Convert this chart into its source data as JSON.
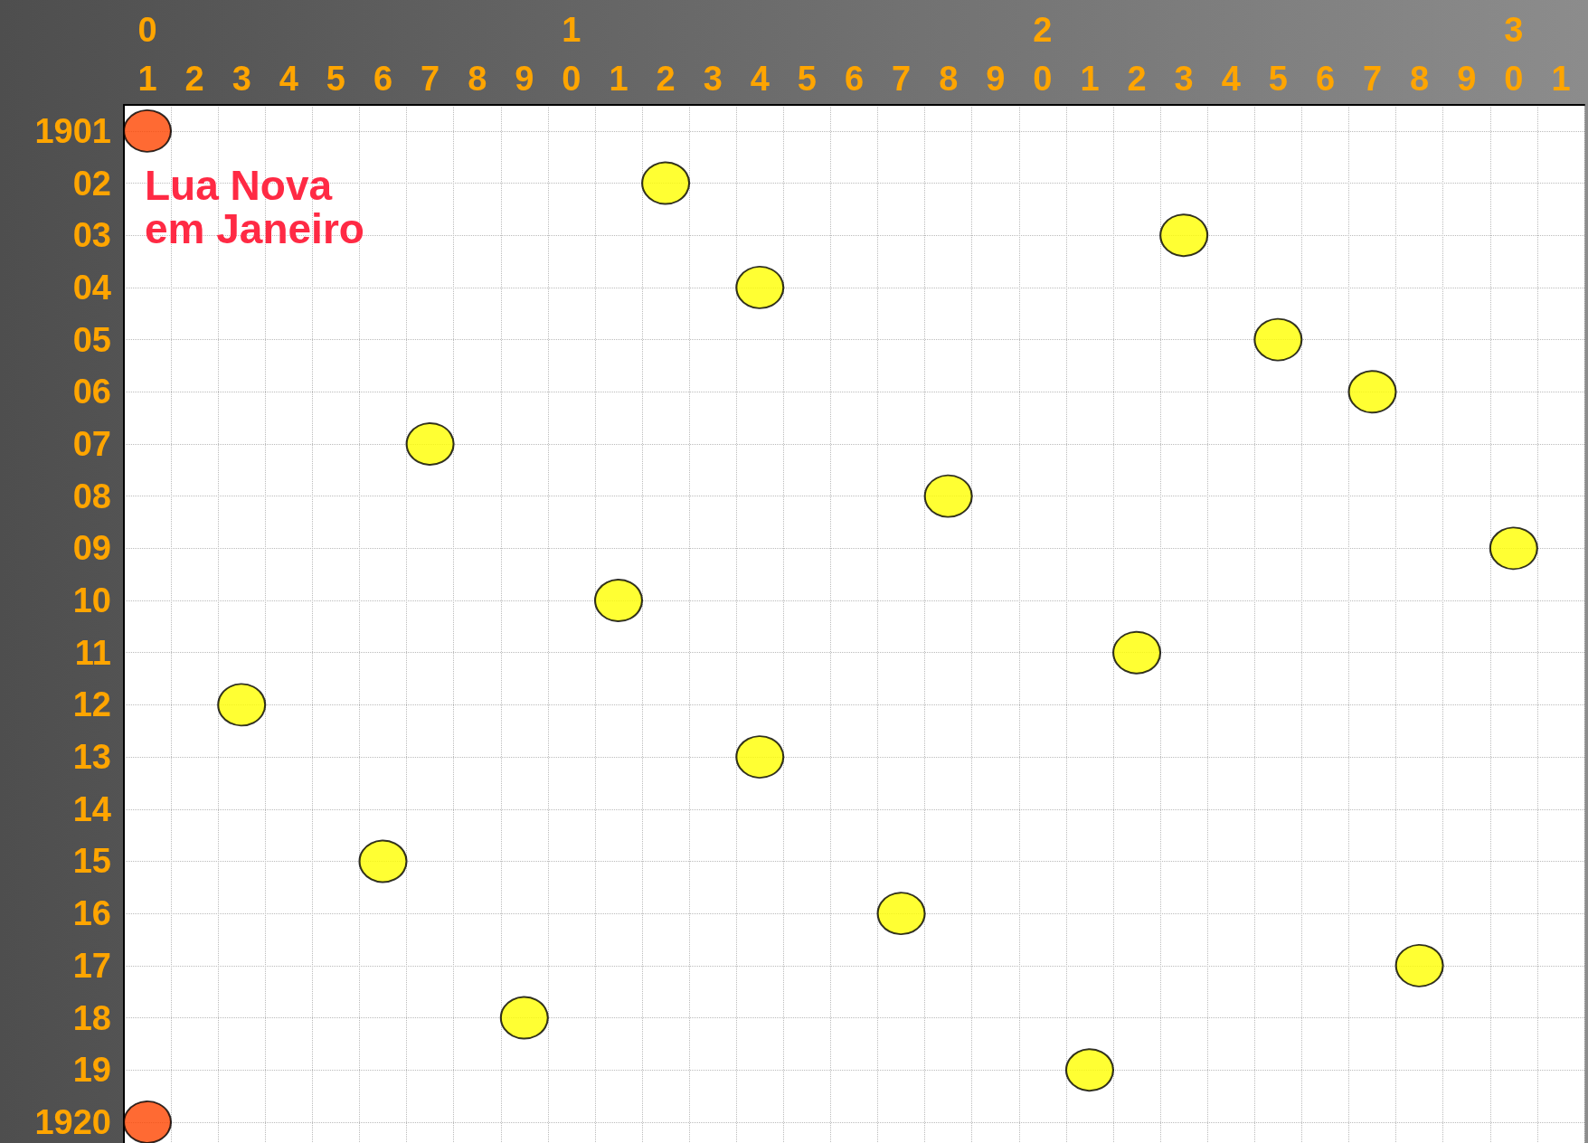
{
  "chart_data": {
    "type": "scatter",
    "categories": [
      "1",
      "2",
      "3",
      "4",
      "5",
      "6",
      "7",
      "8",
      "9",
      "0",
      "1",
      "2",
      "3",
      "4",
      "5",
      "6",
      "7",
      "8",
      "9",
      "0",
      "1",
      "2",
      "3",
      "4",
      "5",
      "6",
      "7",
      "8",
      "9",
      "0",
      "1"
    ],
    "series": [
      {
        "values": [
          1901,
          null,
          1912,
          null,
          null,
          1915,
          1907,
          null,
          1918,
          null,
          1910,
          1902,
          null,
          1904,
          null,
          null,
          1916,
          1908,
          null,
          null,
          1919,
          1911,
          1903,
          null,
          1905,
          null,
          1906,
          1917,
          null,
          1909,
          null
        ],
        "colors": [
          "#ff4500",
          null,
          "#ffff00",
          null,
          null,
          "#ffff00",
          "#ffff00",
          null,
          "#ffff00",
          null,
          "#ffff00",
          "#ffff00",
          null,
          "#ffff00",
          null,
          null,
          "#ffff00",
          "#ffff00",
          null,
          null,
          "#ffff00",
          "#ffff00",
          "#ffff00",
          null,
          "#ffff00",
          null,
          "#ffff00",
          "#ffff00",
          null,
          "#ffff00",
          null
        ]
      },
      {
        "values": [
          1920,
          null,
          null,
          null,
          null,
          null,
          null,
          null,
          null,
          null,
          null,
          null,
          null,
          1913,
          null,
          null,
          null,
          null,
          null,
          null,
          null,
          null,
          null,
          null,
          null,
          null,
          null,
          null,
          null,
          null,
          null
        ],
        "colors": [
          "#ff4500",
          null,
          null,
          null,
          null,
          null,
          null,
          null,
          null,
          null,
          null,
          null,
          null,
          "#ffff00",
          null,
          null,
          null,
          null,
          null,
          null,
          null,
          null,
          null,
          null,
          null,
          null,
          null,
          null,
          null,
          null,
          null
        ]
      }
    ],
    "marker": "circle",
    "grid": true,
    "ylim": [
      1920.4,
      1900.5
    ],
    "yticks": [
      1901,
      {
        "value": 1902,
        "label": "02"
      },
      {
        "value": 1903,
        "label": "03"
      },
      {
        "value": 1904,
        "label": "04"
      },
      {
        "value": 1905,
        "label": "05"
      },
      {
        "value": 1906,
        "label": "06"
      },
      {
        "value": 1907,
        "label": "07"
      },
      {
        "value": 1908,
        "label": "08"
      },
      {
        "value": 1909,
        "label": "09"
      },
      {
        "value": 1910,
        "label": "10"
      },
      {
        "value": 1911,
        "label": "11"
      },
      {
        "value": 1912,
        "label": "12"
      },
      {
        "value": 1913,
        "label": "13"
      },
      {
        "value": 1914,
        "label": "14"
      },
      {
        "value": 1915,
        "label": "15"
      },
      {
        "value": 1916,
        "label": "16"
      },
      {
        "value": 1917,
        "label": "17"
      },
      {
        "value": 1918,
        "label": "18"
      },
      {
        "value": 1919,
        "label": "19"
      },
      1920
    ],
    "annotations": [
      "0",
      "1",
      "2",
      "3",
      "Lua Nova",
      "em Janeiro"
    ]
  }
}
